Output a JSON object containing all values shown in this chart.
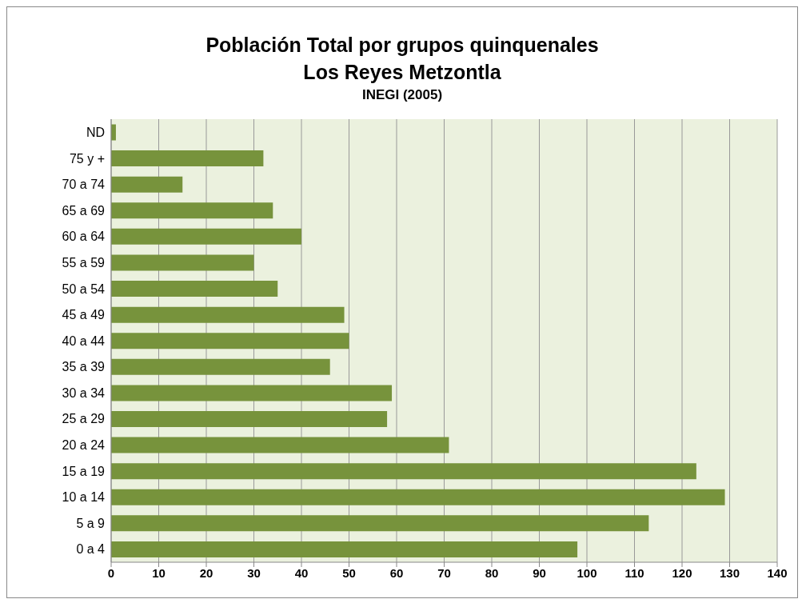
{
  "chart_data": {
    "type": "bar",
    "orientation": "horizontal",
    "title": "Población Total por grupos quinquenales",
    "subtitle": "Los Reyes Metzontla",
    "annotations": [
      "INEGI (2005)"
    ],
    "categories": [
      "ND",
      "75 y +",
      "70 a 74",
      "65 a 69",
      "60 a 64",
      "55 a 59",
      "50 a 54",
      "45 a 49",
      "40 a 44",
      "35 a 39",
      "30 a 34",
      "25 a 29",
      "20 a 24",
      "15 a 19",
      "10 a 14",
      "5 a 9",
      "0 a 4"
    ],
    "values": [
      1,
      32,
      15,
      34,
      40,
      30,
      35,
      49,
      50,
      46,
      59,
      58,
      71,
      123,
      129,
      113,
      98
    ],
    "color": "#77933c",
    "xlim": [
      0,
      140
    ],
    "xticks": [
      0,
      10,
      20,
      30,
      40,
      50,
      60,
      70,
      80,
      90,
      100,
      110,
      120,
      130,
      140
    ],
    "grid": "x"
  }
}
